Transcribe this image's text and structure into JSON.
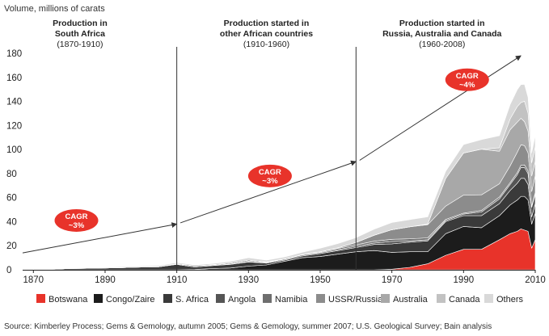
{
  "chart_data": {
    "type": "area",
    "stacked": true,
    "ylabel": "Volume, millions of carats",
    "ylim": [
      0,
      180
    ],
    "yticks": [
      0,
      20,
      40,
      60,
      80,
      100,
      120,
      140,
      160,
      180
    ],
    "xlim": [
      1867,
      2010
    ],
    "xticks": [
      1870,
      1890,
      1910,
      1930,
      1950,
      1970,
      1990,
      2010
    ],
    "eras": [
      {
        "title": "Production in",
        "title2": "South Africa",
        "range": "(1870-1910)",
        "center": 1883
      },
      {
        "title": "Production started in",
        "title2": "other African countries",
        "range": "(1910-1960)",
        "center": 1935
      },
      {
        "title": "Production started in",
        "title2": "Russia, Australia and Canada",
        "range": "(1960-2008)",
        "center": 1984
      }
    ],
    "dividers": [
      1910,
      1960
    ],
    "growth": [
      {
        "label1": "CAGR",
        "label2": "~3%",
        "from": [
          1867,
          14
        ],
        "to": [
          1910,
          38
        ],
        "badge": [
          1882,
          41
        ]
      },
      {
        "label1": "CAGR",
        "label2": "~3%",
        "from": [
          1911,
          39
        ],
        "to": [
          1960,
          90
        ],
        "badge": [
          1936,
          78
        ]
      },
      {
        "label1": "CAGR",
        "label2": "~4%",
        "from": [
          1961,
          91
        ],
        "to": [
          2006,
          178
        ],
        "badge": [
          1991,
          158
        ]
      }
    ],
    "x": [
      1870,
      1875,
      1880,
      1885,
      1890,
      1895,
      1900,
      1905,
      1910,
      1915,
      1920,
      1925,
      1930,
      1935,
      1940,
      1945,
      1950,
      1955,
      1960,
      1965,
      1970,
      1975,
      1980,
      1985,
      1990,
      1995,
      2000,
      2003,
      2005,
      2006,
      2007,
      2008,
      2009,
      2010
    ],
    "series": [
      {
        "name": "Botswana",
        "color": "#e8332a",
        "values": [
          0,
          0,
          0,
          0,
          0,
          0,
          0,
          0,
          0,
          0,
          0,
          0,
          0,
          0,
          0,
          0,
          0,
          0,
          0,
          0,
          0.5,
          2,
          5,
          12,
          17,
          17,
          25,
          30,
          32,
          34,
          33,
          32,
          18,
          25
        ]
      },
      {
        "name": "Congo/Zaire",
        "color": "#1c1c1c",
        "values": [
          0,
          0,
          0,
          0,
          0,
          0,
          0,
          0,
          0,
          0.3,
          1,
          1.5,
          3,
          4,
          7,
          10,
          11,
          13,
          15,
          16,
          14,
          13,
          10,
          18,
          19,
          18,
          20,
          24,
          26,
          27,
          28,
          26,
          20,
          22
        ]
      },
      {
        "name": "S. Africa",
        "color": "#3a3a3a",
        "values": [
          0.2,
          0.4,
          1,
          1.2,
          1.5,
          1.8,
          2.2,
          2.5,
          4.5,
          2,
          2.5,
          3,
          3.5,
          1.5,
          1,
          1.5,
          2.5,
          3,
          3.5,
          5,
          7,
          8,
          9,
          10,
          9,
          10,
          10,
          12,
          14,
          15,
          15,
          13,
          6,
          8
        ]
      },
      {
        "name": "Angola",
        "color": "#555555",
        "values": [
          0,
          0,
          0,
          0,
          0,
          0,
          0,
          0,
          0,
          0,
          0.2,
          0.3,
          0.5,
          0.6,
          0.8,
          0.8,
          0.8,
          0.8,
          1,
          1.2,
          2,
          1,
          1,
          1,
          1.3,
          3,
          4,
          5,
          7,
          9,
          9,
          9,
          8,
          8
        ]
      },
      {
        "name": "Namibia",
        "color": "#6e6e6e",
        "values": [
          0,
          0,
          0,
          0,
          0,
          0,
          0,
          0,
          0.5,
          1,
          0.5,
          0.8,
          1,
          0.5,
          0.3,
          0.3,
          0.6,
          1,
          1.2,
          1.5,
          1.8,
          1.7,
          1.5,
          0.9,
          0.8,
          1.3,
          1.5,
          1.5,
          1.8,
          2,
          2.2,
          2.3,
          1,
          1.2
        ]
      },
      {
        "name": "USSR/Russia",
        "color": "#8c8c8c",
        "values": [
          0,
          0,
          0,
          0,
          0,
          0,
          0,
          0,
          0,
          0,
          0,
          0,
          0,
          0,
          0,
          0,
          0,
          0.5,
          2,
          5,
          8,
          10,
          11,
          11,
          15,
          13,
          11,
          14,
          17,
          17,
          16,
          15,
          12,
          14
        ]
      },
      {
        "name": "Australia",
        "color": "#a8a8a8",
        "values": [
          0,
          0,
          0,
          0,
          0,
          0,
          0,
          0,
          0,
          0,
          0,
          0,
          0,
          0,
          0,
          0,
          0,
          0,
          0,
          0,
          0,
          0,
          0.5,
          23,
          35,
          38,
          27,
          30,
          25,
          22,
          20,
          18,
          13,
          12
        ]
      },
      {
        "name": "Canada",
        "color": "#c2c2c2",
        "values": [
          0,
          0,
          0,
          0,
          0,
          0,
          0,
          0,
          0,
          0,
          0,
          0,
          0,
          0,
          0,
          0,
          0,
          0,
          0,
          0,
          0,
          0,
          0,
          0,
          0,
          0,
          3,
          9,
          13,
          13,
          17,
          15,
          11,
          12
        ]
      },
      {
        "name": "Others",
        "color": "#d9d9d9",
        "values": [
          0,
          0,
          0.2,
          0.3,
          0.5,
          0.7,
          0.8,
          1,
          1,
          0.7,
          1,
          1.4,
          2,
          1.4,
          1.5,
          2,
          3,
          3.5,
          4,
          5,
          6,
          6,
          6,
          6,
          7,
          8,
          10,
          12,
          14,
          15,
          14,
          13,
          8,
          10
        ]
      }
    ],
    "source": "Source: Kimberley Process; Gems & Gemology, autumn 2005; Gems & Gemology, summer 2007; U.S. Geological Survey; Bain analysis"
  },
  "colors": {
    "axis": "#222222",
    "divider": "#333333",
    "arrow": "#333333",
    "badge": "#e8332a"
  }
}
